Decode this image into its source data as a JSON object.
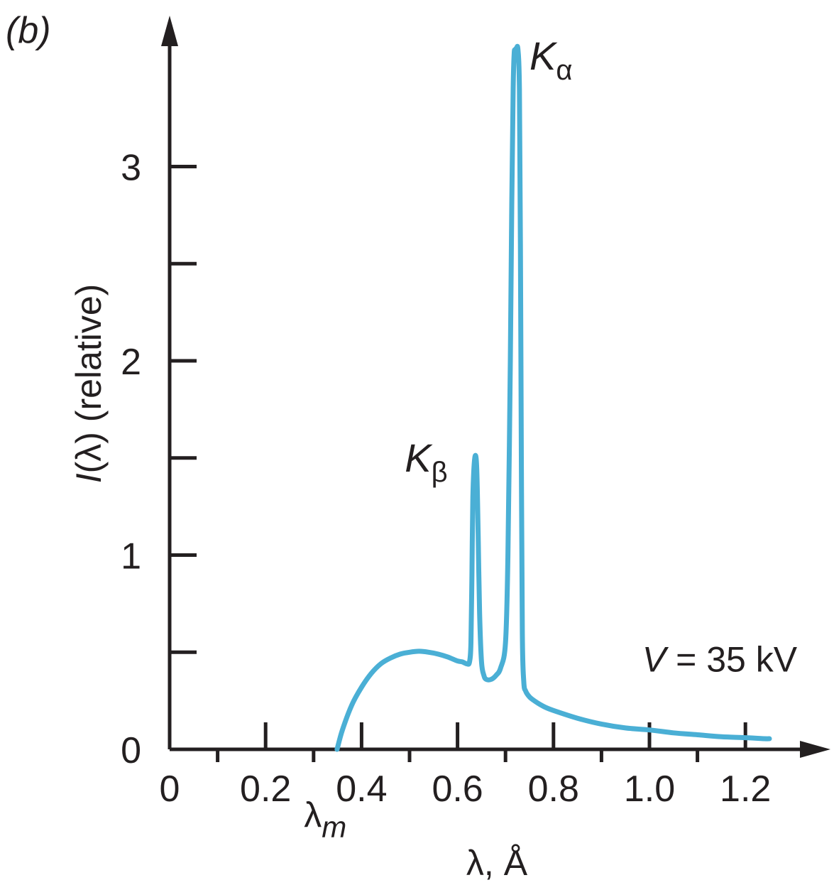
{
  "panel_label": "(b)",
  "chart_data": {
    "type": "line",
    "title": "",
    "xlabel": "λ, Å",
    "ylabel_italic": "I",
    "ylabel_rest": "(λ) (relative)",
    "xlim": [
      0,
      1.3
    ],
    "ylim": [
      0,
      3.8
    ],
    "x_major_ticks": [
      0,
      0.2,
      0.4,
      0.6,
      0.8,
      1.0,
      1.2
    ],
    "x_tick_labels": [
      "0",
      "0.2",
      "0.4",
      "0.6",
      "0.8",
      "1.0",
      "1.2"
    ],
    "x_minor_ticks": [
      0.1,
      0.3,
      0.5,
      0.7,
      0.9,
      1.1
    ],
    "y_major_ticks": [
      0,
      1,
      2,
      3
    ],
    "y_tick_labels": [
      "0",
      "1",
      "2",
      "3"
    ],
    "y_minor_ticks": [
      0.5,
      1.5,
      2.5
    ],
    "line_color": "#4aafd5",
    "axis_color": "#231f20",
    "series": [
      {
        "x": [
          0.349,
          0.36,
          0.38,
          0.4,
          0.42,
          0.44,
          0.46,
          0.48,
          0.5,
          0.52,
          0.54,
          0.56,
          0.58,
          0.6,
          0.61,
          0.62,
          0.625,
          0.628,
          0.63,
          0.632,
          0.636,
          0.64,
          0.643,
          0.646,
          0.65,
          0.655,
          0.66,
          0.67,
          0.68,
          0.69,
          0.7,
          0.705,
          0.71,
          0.713,
          0.716,
          0.718,
          0.72,
          0.723,
          0.726,
          0.729,
          0.731,
          0.733,
          0.735,
          0.738,
          0.742,
          0.75,
          0.76,
          0.78,
          0.8,
          0.85,
          0.9,
          0.95,
          1.0,
          1.05,
          1.1,
          1.15,
          1.2,
          1.24,
          1.25
        ],
        "y": [
          0.0,
          0.1,
          0.23,
          0.32,
          0.39,
          0.44,
          0.47,
          0.49,
          0.5,
          0.505,
          0.5,
          0.49,
          0.475,
          0.455,
          0.45,
          0.44,
          0.45,
          0.55,
          0.9,
          1.3,
          1.5,
          1.45,
          1.1,
          0.7,
          0.45,
          0.38,
          0.36,
          0.36,
          0.38,
          0.42,
          0.55,
          1.0,
          2.0,
          2.8,
          3.4,
          3.58,
          3.6,
          3.61,
          3.6,
          3.4,
          2.6,
          1.5,
          0.6,
          0.35,
          0.3,
          0.27,
          0.25,
          0.22,
          0.2,
          0.16,
          0.13,
          0.11,
          0.1,
          0.085,
          0.075,
          0.065,
          0.06,
          0.055,
          0.055
        ]
      }
    ],
    "annotations": [
      {
        "id": "ka",
        "main": "K",
        "sub": "α",
        "x": 0.75,
        "y": 3.5
      },
      {
        "id": "kb",
        "main": "K",
        "sub": "β",
        "x": 0.49,
        "y": 1.43
      },
      {
        "id": "v",
        "main_italic": "V",
        "rest": " = 35 kV",
        "x": 0.985,
        "y": 0.4
      },
      {
        "id": "lm",
        "main": "λ",
        "sub": "m",
        "x": 0.28,
        "y": -0.4
      }
    ]
  }
}
